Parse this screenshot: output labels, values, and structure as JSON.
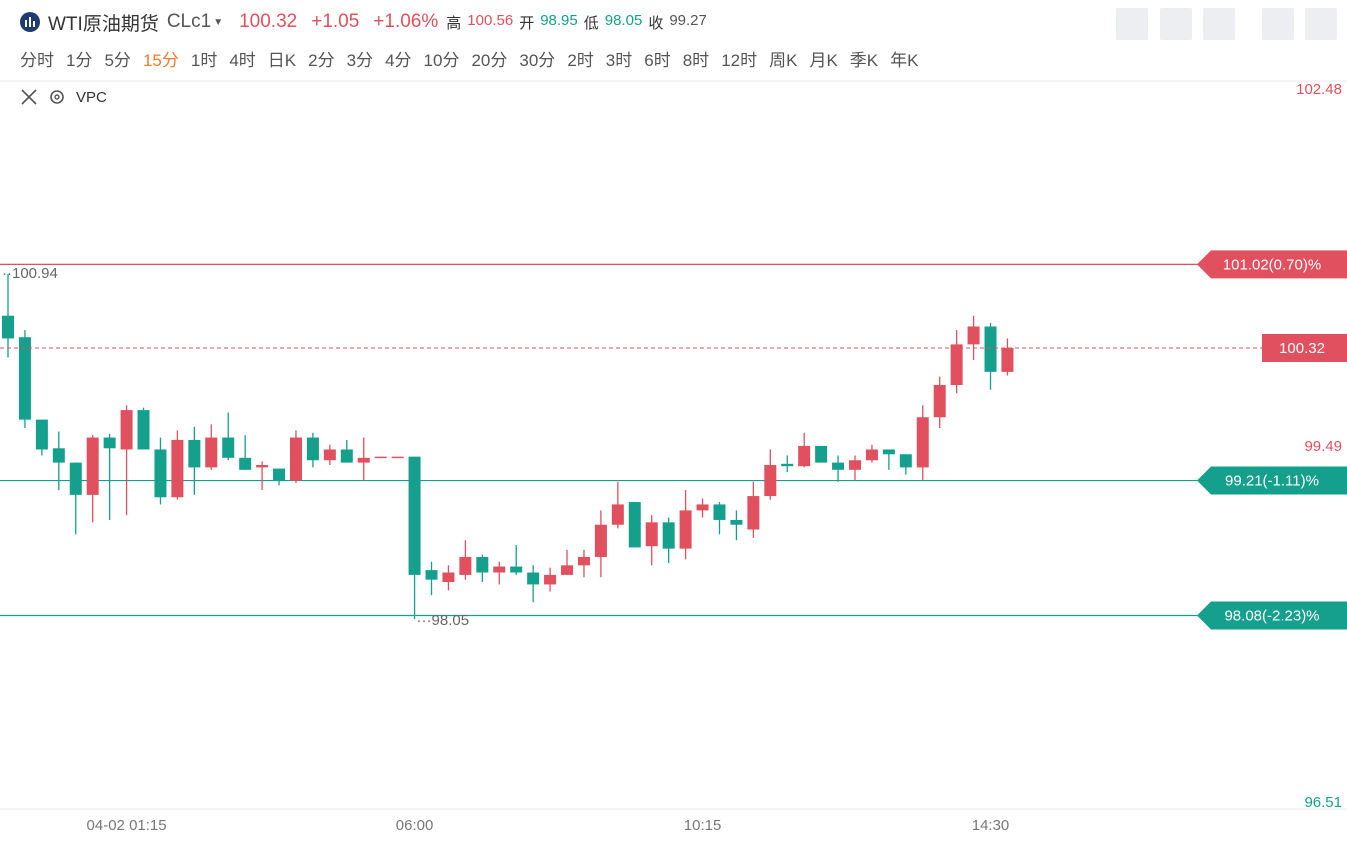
{
  "header": {
    "title": "WTI原油期货",
    "symbol": "CLc1",
    "price": 100.32,
    "change": "+1.05",
    "change_pct": "+1.06%",
    "stats": [
      {
        "label": "高",
        "value": 100.56,
        "color": "#e0505e"
      },
      {
        "label": "开",
        "value": 98.95,
        "color": "#14a08c"
      },
      {
        "label": "低",
        "value": 98.05,
        "color": "#14a08c"
      },
      {
        "label": "收",
        "value": 99.27,
        "color": "#555555"
      }
    ]
  },
  "timeframes": [
    "分时",
    "1分",
    "5分",
    "15分",
    "1时",
    "4时",
    "日K",
    "2分",
    "3分",
    "4分",
    "10分",
    "20分",
    "30分",
    "2时",
    "3时",
    "6时",
    "8时",
    "12时",
    "周K",
    "月K",
    "季K",
    "年K"
  ],
  "selected_timeframe": 3,
  "indicator": "VPC",
  "chart_data": {
    "type": "candlestick",
    "x": [
      null,
      null,
      null,
      null,
      null,
      null,
      null,
      "04-02 01:15",
      null,
      null,
      null,
      null,
      null,
      null,
      null,
      null,
      null,
      null,
      null,
      null,
      null,
      null,
      null,
      null,
      "06:00",
      null,
      null,
      null,
      null,
      null,
      null,
      null,
      null,
      null,
      null,
      null,
      null,
      null,
      null,
      null,
      null,
      "10:15",
      null,
      null,
      null,
      null,
      null,
      null,
      null,
      null,
      null,
      null,
      null,
      null,
      null,
      null,
      null,
      null,
      "14:30",
      null
    ],
    "open": [
      100.59,
      100.41,
      99.72,
      99.48,
      99.36,
      99.09,
      99.57,
      99.47,
      99.8,
      99.47,
      99.07,
      99.55,
      99.32,
      99.57,
      99.4,
      99.32,
      99.31,
      99.21,
      99.57,
      99.38,
      99.47,
      99.36,
      99.4,
      99.41,
      99.41,
      98.46,
      98.36,
      98.42,
      98.57,
      98.44,
      98.49,
      98.44,
      98.34,
      98.42,
      98.5,
      98.57,
      98.84,
      99.03,
      98.66,
      98.86,
      98.64,
      98.96,
      99.01,
      98.88,
      98.8,
      99.08,
      99.35,
      99.33,
      99.5,
      99.36,
      99.3,
      99.38,
      99.47,
      99.43,
      99.32,
      99.74,
      100.01,
      100.35,
      100.5,
      100.12
    ],
    "high": [
      100.94,
      100.47,
      99.72,
      99.62,
      99.36,
      99.59,
      99.6,
      99.84,
      99.82,
      99.57,
      99.63,
      99.66,
      99.68,
      99.78,
      99.59,
      99.37,
      99.31,
      99.63,
      99.61,
      99.51,
      99.55,
      99.57,
      99.4,
      99.41,
      99.41,
      98.53,
      98.5,
      98.71,
      98.59,
      98.53,
      98.67,
      98.5,
      98.48,
      98.63,
      98.63,
      98.96,
      99.2,
      99.03,
      98.92,
      98.9,
      99.13,
      99.06,
      99.03,
      98.96,
      99.2,
      99.47,
      99.42,
      99.61,
      99.5,
      99.42,
      99.42,
      99.51,
      99.47,
      99.43,
      99.84,
      100.08,
      100.47,
      100.59,
      100.53,
      100.4
    ],
    "low": [
      100.24,
      99.65,
      99.42,
      99.13,
      98.76,
      98.86,
      98.88,
      98.92,
      99.47,
      99.01,
      99.05,
      99.09,
      99.3,
      99.38,
      99.3,
      99.13,
      99.17,
      99.19,
      99.32,
      99.34,
      99.36,
      99.21,
      99.4,
      99.41,
      98.05,
      98.25,
      98.29,
      98.38,
      98.36,
      98.34,
      98.42,
      98.19,
      98.28,
      98.42,
      98.4,
      98.4,
      98.81,
      98.65,
      98.5,
      98.52,
      98.55,
      98.9,
      98.76,
      98.71,
      98.73,
      99.05,
      99.28,
      99.32,
      99.36,
      99.2,
      99.21,
      99.36,
      99.3,
      99.26,
      99.21,
      99.65,
      99.94,
      100.22,
      99.97,
      100.09
    ],
    "close": [
      100.4,
      99.72,
      99.47,
      99.36,
      99.09,
      99.57,
      99.48,
      99.8,
      99.47,
      99.07,
      99.55,
      99.32,
      99.57,
      99.4,
      99.3,
      99.34,
      99.21,
      99.57,
      99.38,
      99.47,
      99.36,
      99.4,
      99.41,
      99.41,
      98.42,
      98.38,
      98.44,
      98.57,
      98.44,
      98.49,
      98.44,
      98.34,
      98.42,
      98.5,
      98.57,
      98.84,
      99.01,
      98.65,
      98.86,
      98.64,
      98.96,
      99.01,
      98.88,
      98.84,
      99.08,
      99.34,
      99.33,
      99.5,
      99.36,
      99.3,
      99.38,
      99.47,
      99.43,
      99.32,
      99.74,
      100.01,
      100.35,
      100.5,
      100.12,
      100.32
    ],
    "up_color": "#e0505e",
    "down_color": "#14a08c",
    "ylim": [
      96.51,
      102.48
    ],
    "yticks": [
      102.48,
      99.49,
      96.51
    ],
    "levels": [
      {
        "value": 101.02,
        "label": "101.02(0.70)%",
        "color": "#e0505e"
      },
      {
        "value": 99.21,
        "label": "99.21(-1.11)%",
        "color": "#14a08c"
      },
      {
        "value": 98.08,
        "label": "98.08(-2.23)%",
        "color": "#14a08c"
      }
    ],
    "last_price": 100.32,
    "max_label": 100.94,
    "min_label": 98.05
  }
}
